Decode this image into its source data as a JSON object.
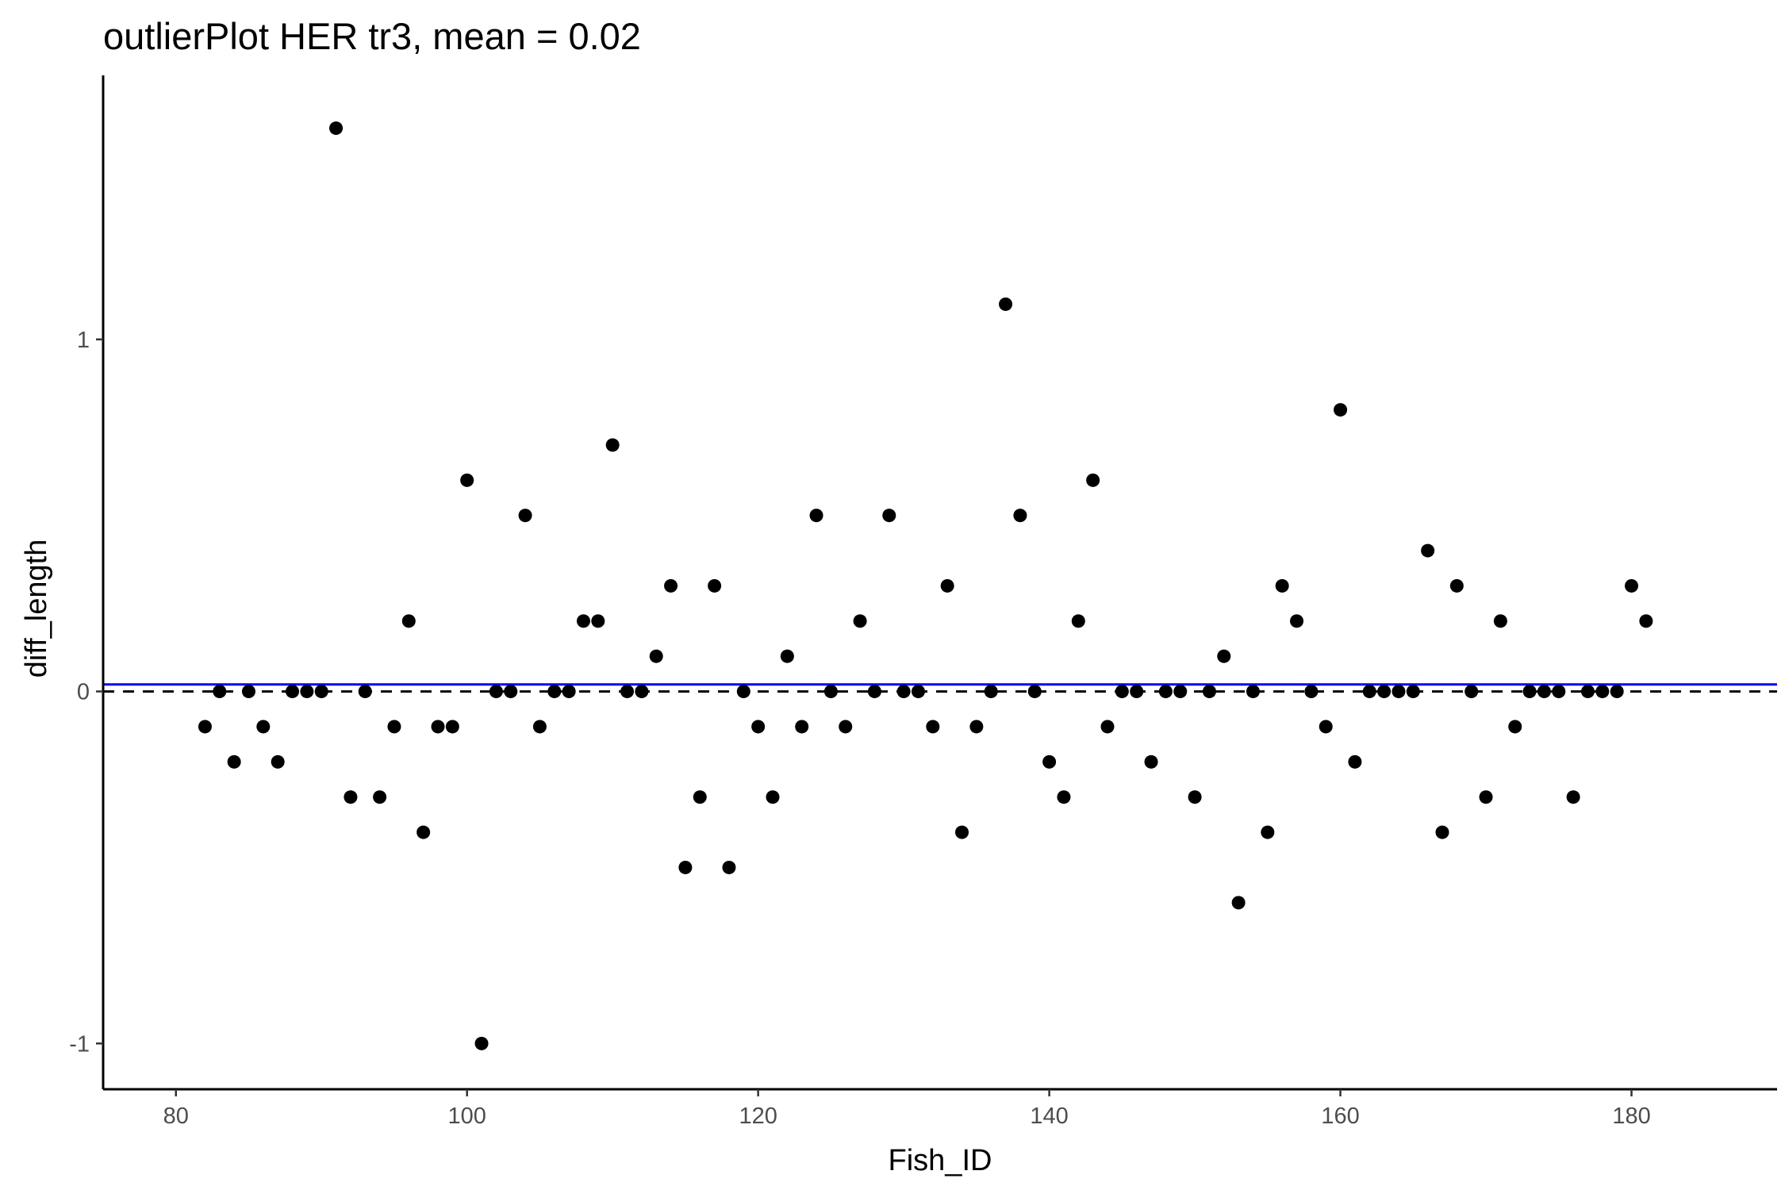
{
  "chart_data": {
    "type": "scatter",
    "title": "outlierPlot HER tr3, mean = 0.02",
    "xlabel": "Fish_ID",
    "ylabel": "diff_length",
    "xlim": [
      75,
      190
    ],
    "ylim": [
      -1.13,
      1.75
    ],
    "xticks": [
      80,
      100,
      120,
      140,
      160,
      180
    ],
    "yticks": [
      -1,
      0,
      1
    ],
    "mean_line": {
      "value": 0.02,
      "color": "#0000ff"
    },
    "zero_line": {
      "value": 0,
      "color": "#000000",
      "style": "dashed"
    },
    "point_color": "#000000",
    "grid": false,
    "x": [
      82,
      83,
      84,
      85,
      86,
      87,
      88,
      89,
      90,
      91,
      92,
      93,
      94,
      95,
      96,
      97,
      98,
      99,
      100,
      101,
      102,
      103,
      104,
      105,
      106,
      107,
      108,
      109,
      110,
      111,
      112,
      113,
      114,
      115,
      116,
      117,
      118,
      119,
      120,
      121,
      122,
      123,
      124,
      125,
      126,
      127,
      128,
      129,
      130,
      131,
      132,
      133,
      134,
      135,
      136,
      137,
      138,
      139,
      140,
      141,
      142,
      143,
      144,
      145,
      146,
      147,
      148,
      149,
      150,
      151,
      152,
      153,
      154,
      155,
      156,
      157,
      158,
      159,
      160,
      161,
      162,
      163,
      164,
      165,
      166,
      167,
      168,
      169,
      170,
      171,
      172,
      173,
      174,
      175,
      176,
      177,
      178,
      179,
      180,
      181
    ],
    "y": [
      -0.1,
      0,
      -0.2,
      0,
      -0.1,
      -0.2,
      0,
      0,
      0,
      1.6,
      -0.3,
      0,
      -0.3,
      -0.1,
      0.2,
      -0.4,
      -0.1,
      -0.1,
      0.6,
      -1,
      0,
      0,
      0.5,
      -0.1,
      0,
      0,
      0.2,
      0.2,
      0.7,
      0,
      0,
      0.1,
      0.3,
      -0.5,
      -0.3,
      0.3,
      -0.5,
      0,
      -0.1,
      -0.3,
      0.1,
      -0.1,
      0.5,
      0,
      -0.1,
      0.2,
      0,
      0.5,
      0,
      0,
      -0.1,
      0.3,
      -0.4,
      -0.1,
      0,
      1.1,
      0.5,
      0,
      -0.2,
      -0.3,
      0.2,
      0.6,
      -0.1,
      0,
      0,
      -0.2,
      0,
      0,
      -0.3,
      0,
      0.1,
      -0.6,
      0,
      -0.4,
      0.3,
      0.2,
      0,
      -0.1,
      0.8,
      -0.2,
      0,
      0,
      0,
      0,
      0.4,
      -0.4,
      0.3,
      0,
      -0.3,
      0.2,
      -0.1,
      0,
      0,
      0,
      -0.3,
      0,
      0,
      0,
      0.3,
      0.2
    ]
  }
}
